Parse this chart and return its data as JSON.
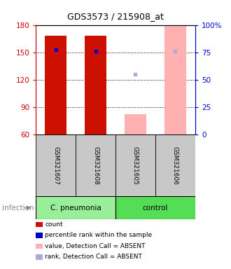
{
  "title": "GDS3573 / 215908_at",
  "samples": [
    "GSM321607",
    "GSM321608",
    "GSM321605",
    "GSM321606"
  ],
  "ylim": [
    60,
    180
  ],
  "yticks": [
    60,
    90,
    120,
    150,
    180
  ],
  "y2lim": [
    0,
    100
  ],
  "y2ticks": [
    0,
    25,
    50,
    75,
    100
  ],
  "y2labels": [
    "0",
    "25",
    "50",
    "75",
    "100%"
  ],
  "count_values": [
    169,
    169,
    82,
    180
  ],
  "count_colors": [
    "#CC1100",
    "#CC1100",
    "#FFB0B0",
    "#FFB0B0"
  ],
  "percentile_values": [
    153,
    152,
    126,
    152
  ],
  "percentile_colors": [
    "#0000CC",
    "#0000CC",
    "#AAAADD",
    "#AAAADD"
  ],
  "bar_width": 0.55,
  "left_axis_color": "#CC0000",
  "right_axis_color": "#0000CC",
  "grid_color": "black",
  "grid_style": "dotted",
  "group_label": "infection",
  "group_boxes": [
    {
      "name": "C. pneumonia",
      "cols": [
        0,
        1
      ],
      "color": "#99EE99"
    },
    {
      "name": "control",
      "cols": [
        2,
        3
      ],
      "color": "#55DD55"
    }
  ],
  "sample_box_color": "#C8C8C8",
  "legend": [
    {
      "color": "#CC1100",
      "label": "count"
    },
    {
      "color": "#0000CC",
      "label": "percentile rank within the sample"
    },
    {
      "color": "#FFB0B0",
      "label": "value, Detection Call = ABSENT"
    },
    {
      "color": "#AAAADD",
      "label": "rank, Detection Call = ABSENT"
    }
  ]
}
